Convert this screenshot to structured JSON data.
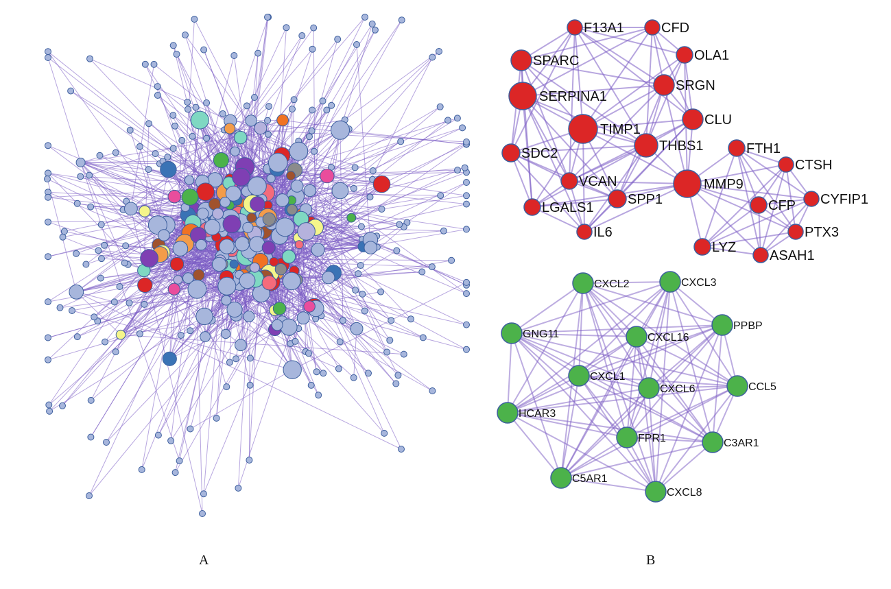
{
  "panels": {
    "a_label": "A",
    "b_label": "B"
  },
  "colors": {
    "edge": "#7b5cc4",
    "node_stroke": "#3d5f9e",
    "red_module": "#dc2626",
    "green_module": "#4cb24a",
    "hairball_default": "#a7b6dc",
    "hairball_palette": [
      "#dc2626",
      "#4cb24a",
      "#7f3fb3",
      "#3a73b5",
      "#f07223",
      "#f5f58a",
      "#7fd8c2",
      "#8b8b8b",
      "#a0522d",
      "#f46b7b",
      "#e94d9c",
      "#b5b2dd",
      "#f39c4a"
    ]
  },
  "red_module": {
    "nodes": [
      "F13A1",
      "CFD",
      "OLA1",
      "SPARC",
      "SERPINA1",
      "SRGN",
      "CLU",
      "TIMP1",
      "THBS1",
      "SDC2",
      "FTH1",
      "CTSH",
      "VCAN",
      "MMP9",
      "SPP1",
      "LGALS1",
      "CFP",
      "CYFIP1",
      "IL6",
      "PTX3",
      "LYZ",
      "ASAH1"
    ]
  },
  "green_module": {
    "nodes": [
      "CXCL2",
      "CXCL3",
      "GNG11",
      "PPBP",
      "CXCL16",
      "CXCL1",
      "CXCL6",
      "CCL5",
      "HCAR3",
      "FPR1",
      "C3AR1",
      "C5AR1",
      "CXCL8"
    ]
  }
}
